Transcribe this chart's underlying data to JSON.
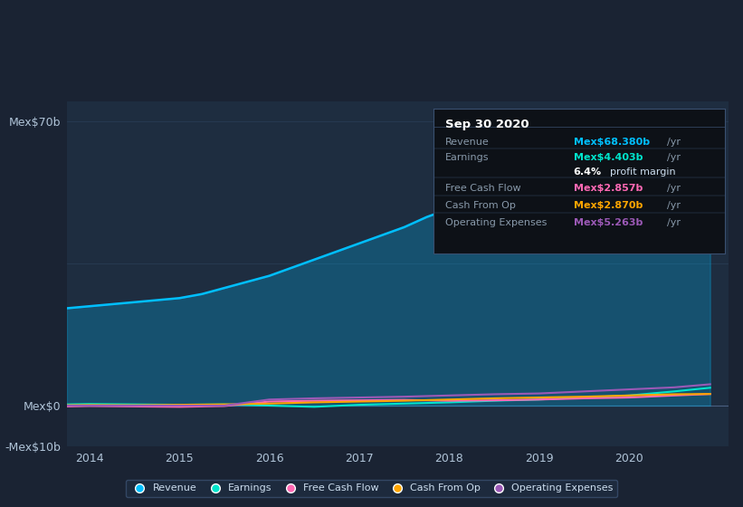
{
  "bg_color": "#1a2333",
  "plot_bg_color": "#1e2d40",
  "grid_color": "#2a3f58",
  "title_box": {
    "date": "Sep 30 2020",
    "rows": [
      {
        "label": "Revenue",
        "value": "Mex$68.380b",
        "unit": "/yr",
        "color": "#00bfff"
      },
      {
        "label": "Earnings",
        "value": "Mex$4.403b",
        "unit": "/yr",
        "color": "#00e5cc"
      },
      {
        "label": "",
        "value": "6.4%",
        "unit": " profit margin",
        "color": "#ffffff"
      },
      {
        "label": "Free Cash Flow",
        "value": "Mex$2.857b",
        "unit": "/yr",
        "color": "#ff69b4"
      },
      {
        "label": "Cash From Op",
        "value": "Mex$2.870b",
        "unit": "/yr",
        "color": "#ffa500"
      },
      {
        "label": "Operating Expenses",
        "value": "Mex$5.263b",
        "unit": "/yr",
        "color": "#9b59b6"
      }
    ]
  },
  "revenue": {
    "x": [
      2013.75,
      2014.0,
      2014.25,
      2014.5,
      2014.75,
      2015.0,
      2015.25,
      2015.5,
      2015.75,
      2016.0,
      2016.25,
      2016.5,
      2016.75,
      2017.0,
      2017.25,
      2017.5,
      2017.75,
      2018.0,
      2018.25,
      2018.5,
      2018.75,
      2019.0,
      2019.25,
      2019.5,
      2019.75,
      2020.0,
      2020.25,
      2020.5,
      2020.75,
      2020.9
    ],
    "y": [
      24.0,
      24.5,
      25.0,
      25.5,
      26.0,
      26.5,
      27.5,
      29.0,
      30.5,
      32.0,
      34.0,
      36.0,
      38.0,
      40.0,
      42.0,
      44.0,
      46.5,
      48.5,
      50.0,
      52.0,
      53.5,
      55.0,
      56.5,
      58.5,
      60.0,
      62.0,
      64.0,
      65.5,
      67.5,
      68.4
    ],
    "color": "#00bfff"
  },
  "earnings": {
    "x": [
      2013.75,
      2014.0,
      2014.5,
      2015.0,
      2015.5,
      2016.0,
      2016.5,
      2017.0,
      2017.5,
      2018.0,
      2018.5,
      2019.0,
      2019.5,
      2020.0,
      2020.5,
      2020.9
    ],
    "y": [
      0.3,
      0.4,
      0.3,
      0.2,
      0.3,
      0.0,
      -0.3,
      0.2,
      0.5,
      0.8,
      1.2,
      1.5,
      2.0,
      2.5,
      3.5,
      4.4
    ],
    "color": "#00e5cc"
  },
  "free_cash_flow": {
    "x": [
      2013.75,
      2014.0,
      2014.5,
      2015.0,
      2015.5,
      2016.0,
      2016.5,
      2017.0,
      2017.5,
      2018.0,
      2018.5,
      2019.0,
      2019.5,
      2020.0,
      2020.5,
      2020.9
    ],
    "y": [
      -0.2,
      -0.1,
      -0.2,
      -0.3,
      -0.1,
      1.0,
      1.2,
      1.3,
      1.4,
      1.2,
      1.3,
      1.5,
      1.8,
      2.0,
      2.5,
      2.86
    ],
    "color": "#ff69b4"
  },
  "cash_from_op": {
    "x": [
      2013.75,
      2014.0,
      2014.5,
      2015.0,
      2015.5,
      2016.0,
      2016.5,
      2017.0,
      2017.5,
      2018.0,
      2018.5,
      2019.0,
      2019.5,
      2020.0,
      2020.5,
      2020.9
    ],
    "y": [
      0.1,
      0.15,
      0.1,
      0.2,
      0.3,
      0.5,
      0.8,
      1.0,
      1.2,
      1.5,
      1.8,
      2.0,
      2.2,
      2.5,
      2.8,
      2.87
    ],
    "color": "#ffa500"
  },
  "operating_expenses": {
    "x": [
      2013.75,
      2014.0,
      2014.5,
      2015.0,
      2015.5,
      2016.0,
      2016.5,
      2017.0,
      2017.5,
      2018.0,
      2018.5,
      2019.0,
      2019.5,
      2020.0,
      2020.5,
      2020.9
    ],
    "y": [
      0.0,
      0.0,
      0.0,
      0.0,
      0.0,
      1.5,
      1.8,
      2.0,
      2.2,
      2.5,
      2.8,
      3.0,
      3.5,
      4.0,
      4.5,
      5.26
    ],
    "color": "#9b59b6"
  },
  "ylim": [
    -10,
    75
  ],
  "xlim": [
    2013.75,
    2021.1
  ],
  "xticks": [
    2014,
    2015,
    2016,
    2017,
    2018,
    2019,
    2020
  ],
  "legend": [
    {
      "label": "Revenue",
      "color": "#00bfff"
    },
    {
      "label": "Earnings",
      "color": "#00e5cc"
    },
    {
      "label": "Free Cash Flow",
      "color": "#ff69b4"
    },
    {
      "label": "Cash From Op",
      "color": "#ffa500"
    },
    {
      "label": "Operating Expenses",
      "color": "#9b59b6"
    }
  ],
  "divider_color": "#3a5070",
  "label_color": "#8899aa",
  "text_color": "#ccddee",
  "box_bg": "#0d1117"
}
